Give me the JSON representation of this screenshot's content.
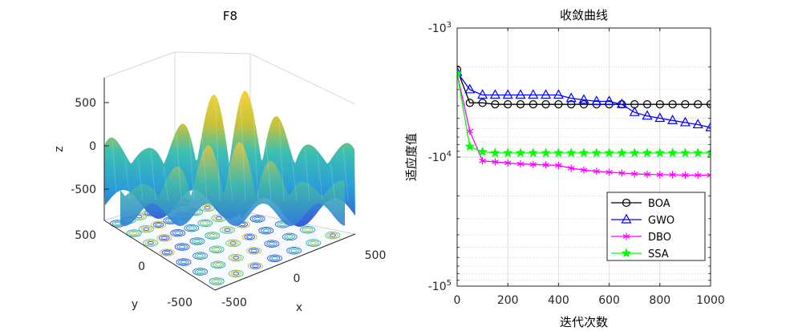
{
  "chart_data": [
    {
      "type": "surface3d",
      "title": "F8",
      "xlabel": "x",
      "ylabel": "y",
      "zlabel": "z",
      "xticks": [
        "-500",
        "0",
        "500"
      ],
      "yticks": [
        "-500",
        "0",
        "500"
      ],
      "zticks": [
        "500",
        "0",
        "-500"
      ],
      "xlim": [
        -500,
        500
      ],
      "ylim": [
        -500,
        500
      ],
      "zlim": [
        -800,
        800
      ]
    },
    {
      "type": "line",
      "title": "收敛曲线",
      "xlabel": "迭代次数",
      "ylabel": "适应度值",
      "yscale": "log",
      "xlim": [
        0,
        1000
      ],
      "xticks": [
        "0",
        "200",
        "400",
        "600",
        "800",
        "1000"
      ],
      "yticks": [
        {
          "base": "-10",
          "exp": "3"
        },
        {
          "base": "-10",
          "exp": "4"
        },
        {
          "base": "-10",
          "exp": "5"
        }
      ],
      "legend_position": "bottom-right",
      "series": [
        {
          "name": "BOA",
          "color": "#000000",
          "marker": "circle",
          "x": [
            0,
            50,
            100,
            150,
            200,
            250,
            300,
            350,
            400,
            450,
            500,
            550,
            600,
            650,
            700,
            750,
            800,
            850,
            900,
            950,
            1000
          ],
          "y": [
            -2100,
            -3800,
            -3800,
            -3900,
            -3900,
            -3900,
            -3900,
            -3900,
            -3900,
            -3900,
            -3900,
            -3900,
            -3900,
            -3900,
            -3900,
            -3900,
            -3900,
            -3900,
            -3900,
            -3900,
            -3900
          ]
        },
        {
          "name": "GWO",
          "color": "#0000ff",
          "marker": "triangle",
          "x": [
            0,
            50,
            100,
            150,
            200,
            250,
            300,
            350,
            400,
            450,
            500,
            550,
            600,
            650,
            700,
            750,
            800,
            850,
            900,
            950,
            1000
          ],
          "y": [
            -2200,
            -3000,
            -3300,
            -3300,
            -3300,
            -3300,
            -3300,
            -3300,
            -3300,
            -3500,
            -3600,
            -3700,
            -3700,
            -3900,
            -4500,
            -4800,
            -5000,
            -5200,
            -5400,
            -5600,
            -5900
          ]
        },
        {
          "name": "DBO",
          "color": "#ff00ff",
          "marker": "star",
          "x": [
            0,
            50,
            100,
            150,
            200,
            250,
            300,
            350,
            400,
            450,
            500,
            550,
            600,
            650,
            700,
            750,
            800,
            850,
            900,
            950,
            1000
          ],
          "y": [
            -2250,
            -6300,
            -10700,
            -10900,
            -11100,
            -11300,
            -11400,
            -11500,
            -11600,
            -12200,
            -12600,
            -12900,
            -13100,
            -13300,
            -13500,
            -13600,
            -13700,
            -13700,
            -13800,
            -13800,
            -13800
          ]
        },
        {
          "name": "SSA",
          "color": "#00ff00",
          "marker": "pentagram",
          "x": [
            0,
            50,
            100,
            150,
            200,
            250,
            300,
            350,
            400,
            450,
            500,
            550,
            600,
            650,
            700,
            750,
            800,
            850,
            900,
            950,
            1000
          ],
          "y": [
            -2250,
            -8300,
            -9100,
            -9300,
            -9300,
            -9300,
            -9300,
            -9300,
            -9300,
            -9300,
            -9300,
            -9300,
            -9300,
            -9300,
            -9300,
            -9300,
            -9300,
            -9300,
            -9300,
            -9300,
            -9300
          ]
        }
      ]
    }
  ]
}
